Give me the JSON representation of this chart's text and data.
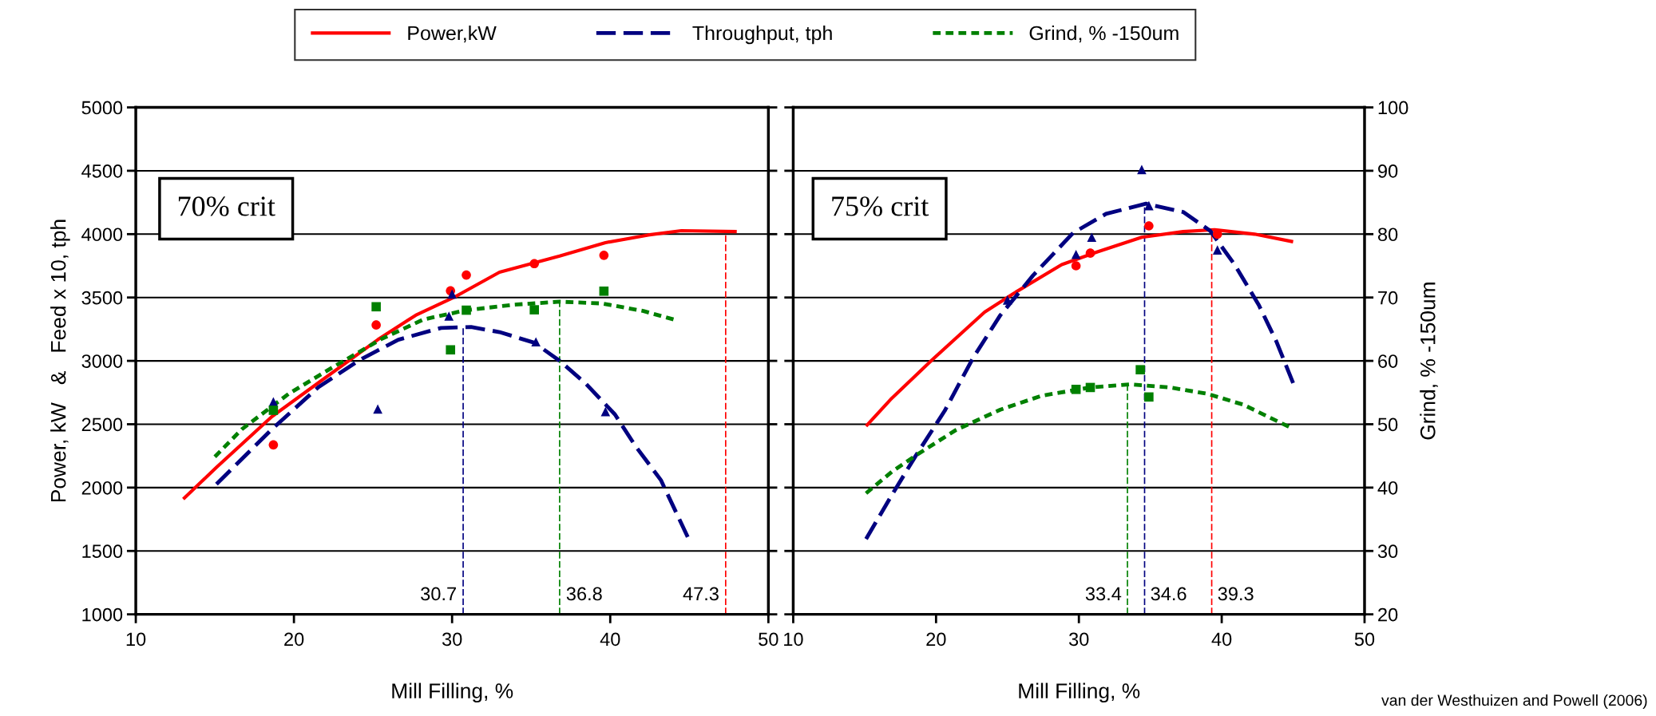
{
  "chart_data": [
    {
      "type": "line",
      "xlabel": "Mill Filling, %",
      "ylabel": "Power, kW   &   Feed x 10, tph",
      "annotations": [
        "70% crit"
      ],
      "xlim": [
        10,
        50
      ],
      "xticks": [
        10,
        20,
        30,
        40,
        50
      ],
      "ylim": [
        1000,
        5000
      ],
      "yticks": [
        1000,
        1500,
        2000,
        2500,
        3000,
        3500,
        4000,
        4500,
        5000
      ],
      "grid": "y",
      "legend": "top",
      "series": [
        {
          "name": "Power,kW",
          "color": "#ff0000",
          "line_style": "solid",
          "marker": "none",
          "x": [
            13.0,
            15.1,
            18.6,
            21.55,
            25.3,
            27.7,
            30.1,
            33.0,
            36.8,
            39.7,
            42.4,
            44.5,
            48.0
          ],
          "values": [
            1910,
            2160,
            2560,
            2827,
            3167,
            3360,
            3500,
            3700,
            3827,
            3933,
            3993,
            4027,
            4020
          ]
        },
        {
          "name": "Throughput, tph",
          "color": "#000080",
          "line_style": "dashed",
          "marker": "none",
          "x": [
            15.1,
            18.6,
            21.55,
            24.2,
            26.6,
            29.3,
            31.2,
            33.0,
            35.2,
            36.8,
            38.4,
            40.3,
            41.6,
            43.2,
            44.9
          ],
          "values": [
            2027,
            2460,
            2793,
            3010,
            3167,
            3260,
            3267,
            3227,
            3143,
            3000,
            2827,
            2577,
            2327,
            2060,
            1610
          ]
        },
        {
          "name": "Grind, % -150um",
          "color": "#008000",
          "line_style": "dotted",
          "marker": "none",
          "x": [
            15.0,
            16.7,
            19.7,
            22.6,
            25.6,
            28.2,
            30.9,
            33.9,
            36.8,
            39.5,
            42.1,
            44.0
          ],
          "values": [
            2243,
            2460,
            2743,
            2960,
            3177,
            3327,
            3400,
            3443,
            3467,
            3453,
            3393,
            3327
          ]
        },
        {
          "type": "scatter",
          "color": "#ff0000",
          "marker": "circle",
          "x": [
            18.7,
            25.2,
            29.9,
            30.9,
            35.2,
            39.6
          ],
          "values": [
            2337,
            3283,
            3553,
            3677,
            3767,
            3833
          ]
        },
        {
          "type": "scatter",
          "color": "#000080",
          "marker": "triangle",
          "x": [
            18.7,
            25.3,
            29.8,
            30.0,
            35.3,
            39.7
          ],
          "values": [
            2677,
            2620,
            3353,
            3527,
            3150,
            2600
          ]
        },
        {
          "type": "scatter",
          "color": "#008000",
          "marker": "square",
          "x": [
            18.7,
            25.2,
            29.9,
            30.9,
            35.2,
            39.6
          ],
          "values": [
            2610,
            3427,
            3087,
            3400,
            3403,
            3550
          ]
        }
      ],
      "ref_lines": [
        {
          "axis": "x",
          "value": 30.7,
          "label": "30.7",
          "color": "#000080",
          "line_style": "dashed"
        },
        {
          "axis": "x",
          "value": 36.8,
          "label": "36.8",
          "color": "#008000",
          "line_style": "dashed"
        },
        {
          "axis": "x",
          "value": 47.3,
          "label": "47.3",
          "color": "#ff0000",
          "line_style": "dashed"
        }
      ]
    },
    {
      "type": "line",
      "xlabel": "Mill Filling, %",
      "y2label": "Grind, % -150um",
      "annotations": [
        "75% crit",
        "van der Westhuizen and Powell (2006)"
      ],
      "xlim": [
        10,
        50
      ],
      "xticks": [
        10,
        20,
        30,
        40,
        50
      ],
      "y2lim": [
        20,
        100
      ],
      "y2ticks": [
        20,
        30,
        40,
        50,
        60,
        70,
        80,
        90,
        100
      ],
      "grid": "y",
      "series": [
        {
          "axis": "y2",
          "color": "#ff0000",
          "line_style": "solid",
          "marker": "none",
          "x": [
            15.1,
            16.9,
            19.7,
            23.4,
            25.4,
            28.8,
            31.3,
            34.4,
            37.3,
            39.5,
            42.3,
            45.0
          ],
          "values": [
            49.7,
            54.1,
            60.1,
            67.7,
            70.6,
            75.2,
            77.2,
            79.5,
            80.4,
            80.7,
            80.0,
            78.8
          ]
        },
        {
          "axis": "y2",
          "color": "#000080",
          "line_style": "dashed",
          "marker": "none",
          "x": [
            15.1,
            16.9,
            18.6,
            20.6,
            22.6,
            24.5,
            26.8,
            29.6,
            31.9,
            34.7,
            37.3,
            39.2,
            40.9,
            42.6,
            43.8,
            45.0
          ],
          "values": [
            31.9,
            38.8,
            45.1,
            52.1,
            60.5,
            67.2,
            73.5,
            80.2,
            83.2,
            84.8,
            83.5,
            80.5,
            75.2,
            68.8,
            63.2,
            56.5
          ]
        },
        {
          "axis": "y2",
          "color": "#008000",
          "line_style": "dotted",
          "marker": "none",
          "x": [
            15.1,
            16.9,
            18.6,
            21.4,
            24.5,
            27.4,
            30.8,
            33.6,
            36.4,
            39.0,
            41.5,
            44.7
          ],
          "values": [
            39.1,
            42.5,
            45.1,
            49.1,
            52.3,
            54.5,
            55.8,
            56.3,
            55.8,
            54.8,
            53.1,
            49.6
          ]
        },
        {
          "type": "scatter",
          "axis": "y2",
          "color": "#ff0000",
          "marker": "circle",
          "x": [
            29.8,
            30.8,
            34.9,
            39.7
          ],
          "values": [
            75.0,
            77.0,
            81.3,
            80.0
          ]
        },
        {
          "type": "scatter",
          "axis": "y2",
          "color": "#000080",
          "marker": "triangle",
          "x": [
            25.0,
            29.8,
            30.9,
            34.4,
            34.9,
            39.7
          ],
          "values": [
            69.6,
            76.8,
            79.5,
            90.2,
            84.5,
            77.5
          ]
        },
        {
          "type": "scatter",
          "axis": "y2",
          "color": "#008000",
          "marker": "square",
          "x": [
            29.8,
            30.8,
            34.3,
            34.9
          ],
          "values": [
            55.5,
            55.8,
            58.6,
            54.3
          ]
        }
      ],
      "ref_lines": [
        {
          "axis": "x",
          "value": 33.4,
          "label": "33.4",
          "color": "#008000",
          "line_style": "dashed"
        },
        {
          "axis": "x",
          "value": 34.6,
          "label": "34.6",
          "color": "#000080",
          "line_style": "dashed"
        },
        {
          "axis": "x",
          "value": 39.3,
          "label": "39.3",
          "color": "#ff0000",
          "line_style": "dashed"
        }
      ]
    }
  ]
}
